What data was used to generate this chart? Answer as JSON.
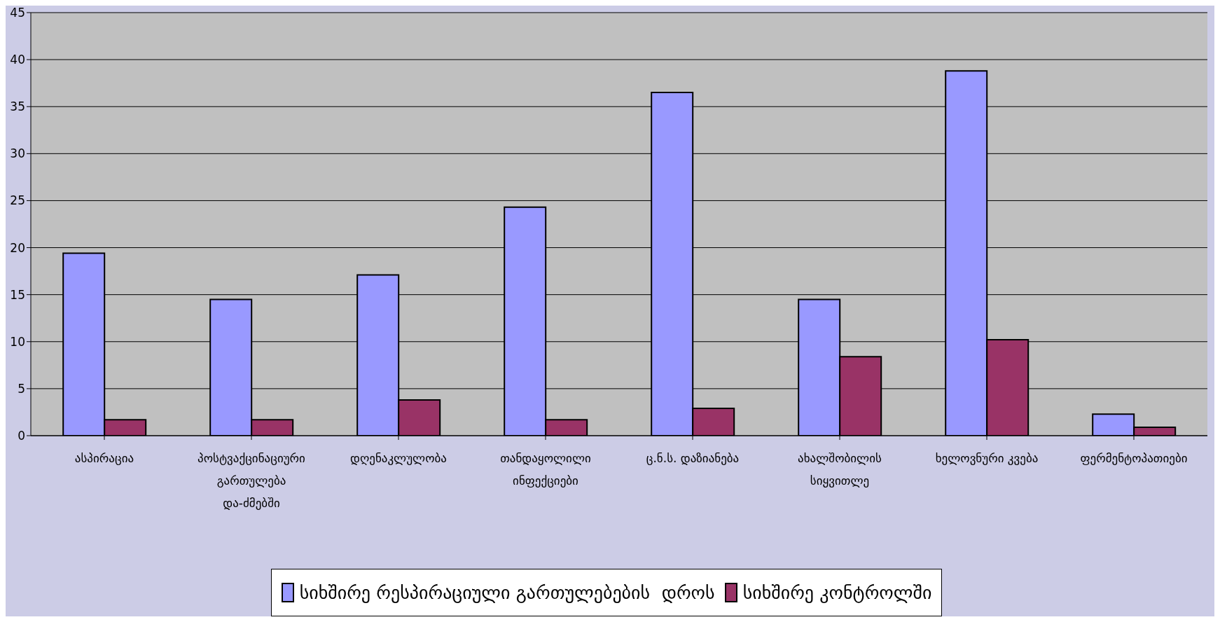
{
  "chart_data": {
    "type": "bar",
    "categories": [
      "ასპირაცია",
      "პოსტვაქცინაციური გართულება და-ძმებში",
      "დღენაკლულობა",
      "თანდაყოლილი ინფექციები",
      "ც.ნ.ს. დაზიანება",
      "ახალშობილის სიყვითლე",
      "ხელოვნური კვება",
      "ფერმენტოპათიები"
    ],
    "series": [
      {
        "name": "სიხშირე რესპირაციული გართულებების  დროს",
        "color": "#9999ff",
        "values": [
          19.4,
          14.5,
          17.1,
          24.3,
          36.5,
          14.5,
          38.8,
          2.3
        ]
      },
      {
        "name": "სიხშირე კონტროლში",
        "color": "#993366",
        "values": [
          1.7,
          1.7,
          3.8,
          1.7,
          2.9,
          8.4,
          10.2,
          0.9
        ]
      }
    ],
    "ylim": [
      0,
      45
    ],
    "yticks": [
      0,
      5,
      10,
      15,
      20,
      25,
      30,
      35,
      40,
      45
    ],
    "grid": "y",
    "legend": "bottom"
  }
}
